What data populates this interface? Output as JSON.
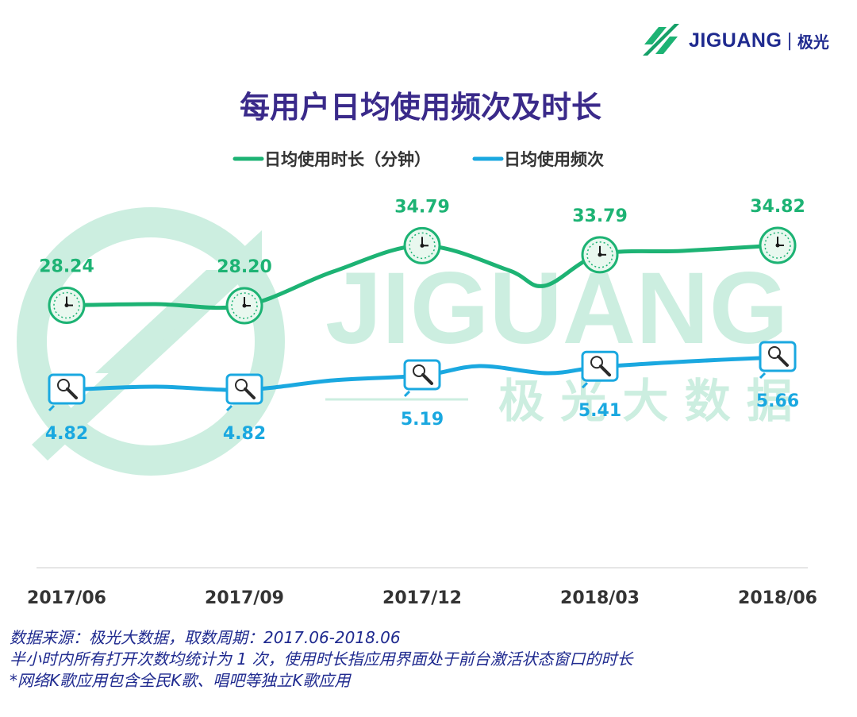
{
  "brand": {
    "logo_text": "JIGUANG",
    "logo_cn": "极光",
    "watermark_en": "JIGUANG",
    "watermark_cn": "极 光 大 数 据"
  },
  "title": "每用户日均使用频次及时长",
  "legend": {
    "duration": "日均使用时长（分钟）",
    "frequency": "日均使用频次"
  },
  "colors": {
    "duration": "#1db374",
    "frequency": "#1aa8e0",
    "title": "#3a2a8a",
    "note": "#1f2a8f"
  },
  "chart_data": {
    "type": "line",
    "title": "每用户日均使用频次及时长",
    "categories": [
      "2017/06",
      "2017/09",
      "2017/12",
      "2018/03",
      "2018/06"
    ],
    "series": [
      {
        "name": "日均使用时长（分钟）",
        "values": [
          28.24,
          28.2,
          34.79,
          33.79,
          34.82
        ],
        "labels": [
          "28.24",
          "28.20",
          "34.79",
          "33.79",
          "34.82"
        ],
        "marker": "clock-icon"
      },
      {
        "name": "日均使用频次",
        "values": [
          4.82,
          4.82,
          5.19,
          5.41,
          5.66
        ],
        "labels": [
          "4.82",
          "4.82",
          "5.19",
          "5.41",
          "5.66"
        ],
        "marker": "microphone-icon"
      }
    ],
    "legend_position": "top-center",
    "grid": false
  },
  "notes": [
    "数据来源：极光大数据，取数周期：2017.06-2018.06",
    "半小时内所有打开次数均统计为 1 次，使用时长指应用界面处于前台激活状态窗口的时长",
    " *网络K歌应用包含全民K歌、唱吧等独立K歌应用"
  ]
}
